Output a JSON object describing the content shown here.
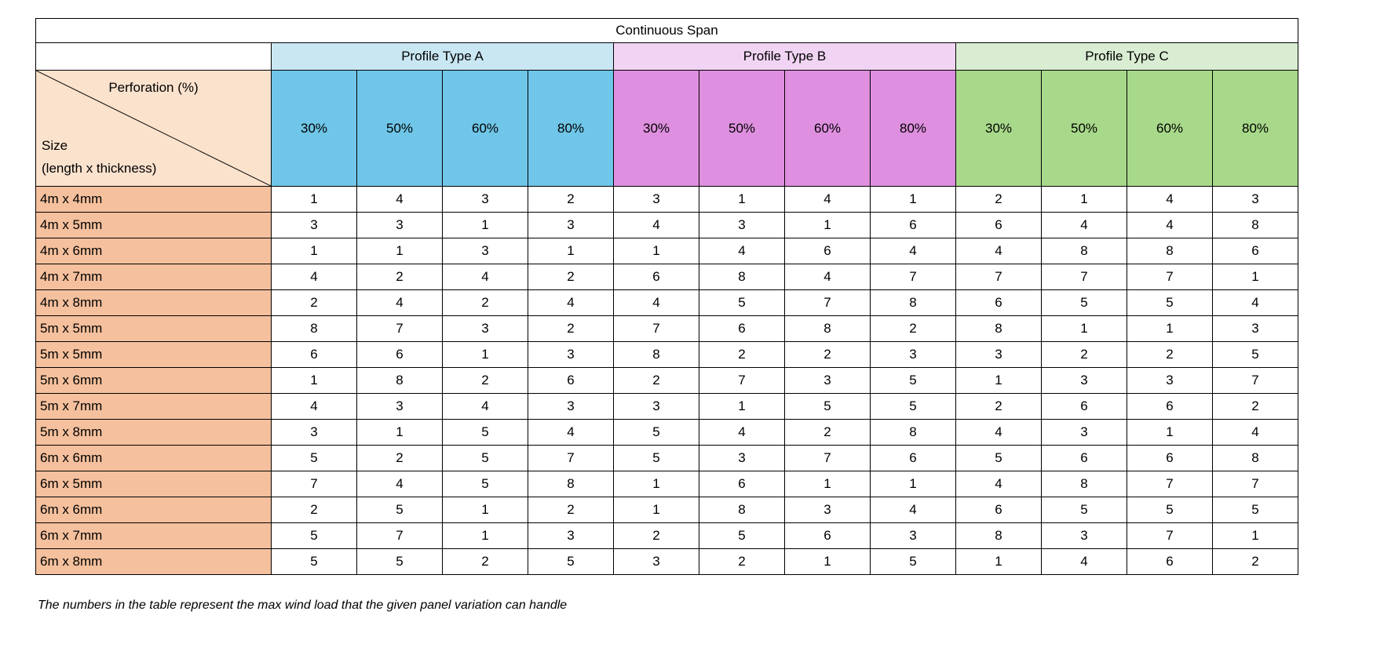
{
  "page": {
    "footnote": "The numbers in the table represent the max wind load that the given panel variation can handle"
  },
  "chart_data": {
    "type": "table",
    "title": "Continuous Span",
    "corner": {
      "top_label": "Perforation (%)",
      "bottom_label_line1": "Size",
      "bottom_label_line2": "(length x thickness)"
    },
    "groups": [
      {
        "key": "profile-a",
        "label": "Profile Type A",
        "header_bg": "#C9E7F3",
        "sub_bg": "#6FC6E8"
      },
      {
        "key": "profile-b",
        "label": "Profile Type B",
        "header_bg": "#F1D4F3",
        "sub_bg": "#DE8FDF"
      },
      {
        "key": "profile-c",
        "label": "Profile Type C",
        "header_bg": "#D9EDD2",
        "sub_bg": "#A8D98A"
      }
    ],
    "perforation_levels": [
      "30%",
      "50%",
      "60%",
      "80%"
    ],
    "colors": {
      "corner_bg": "#FBE2CD",
      "row_header_bg": "#F5C09D",
      "border": "#000000"
    },
    "rows": [
      {
        "size": "4m x 4mm",
        "values": [
          1,
          4,
          3,
          2,
          3,
          1,
          4,
          1,
          2,
          1,
          4,
          3
        ]
      },
      {
        "size": "4m x 5mm",
        "values": [
          3,
          3,
          1,
          3,
          4,
          3,
          1,
          6,
          6,
          4,
          4,
          8
        ]
      },
      {
        "size": "4m x 6mm",
        "values": [
          1,
          1,
          3,
          1,
          1,
          4,
          6,
          4,
          4,
          8,
          8,
          6
        ]
      },
      {
        "size": "4m x 7mm",
        "values": [
          4,
          2,
          4,
          2,
          6,
          8,
          4,
          7,
          7,
          7,
          7,
          1
        ]
      },
      {
        "size": "4m x 8mm",
        "values": [
          2,
          4,
          2,
          4,
          4,
          5,
          7,
          8,
          6,
          5,
          5,
          4
        ]
      },
      {
        "size": "5m x 5mm",
        "values": [
          8,
          7,
          3,
          2,
          7,
          6,
          8,
          2,
          8,
          1,
          1,
          3
        ]
      },
      {
        "size": "5m x 5mm",
        "values": [
          6,
          6,
          1,
          3,
          8,
          2,
          2,
          3,
          3,
          2,
          2,
          5
        ]
      },
      {
        "size": "5m x 6mm",
        "values": [
          1,
          8,
          2,
          6,
          2,
          7,
          3,
          5,
          1,
          3,
          3,
          7
        ]
      },
      {
        "size": "5m x 7mm",
        "values": [
          4,
          3,
          4,
          3,
          3,
          1,
          5,
          5,
          2,
          6,
          6,
          2
        ]
      },
      {
        "size": "5m x 8mm",
        "values": [
          3,
          1,
          5,
          4,
          5,
          4,
          2,
          8,
          4,
          3,
          1,
          4
        ]
      },
      {
        "size": "6m x 6mm",
        "values": [
          5,
          2,
          5,
          7,
          5,
          3,
          7,
          6,
          5,
          6,
          6,
          8
        ]
      },
      {
        "size": "6m x 5mm",
        "values": [
          7,
          4,
          5,
          8,
          1,
          6,
          1,
          1,
          4,
          8,
          7,
          7
        ]
      },
      {
        "size": "6m x 6mm",
        "values": [
          2,
          5,
          1,
          2,
          1,
          8,
          3,
          4,
          6,
          5,
          5,
          5
        ]
      },
      {
        "size": "6m x 7mm",
        "values": [
          5,
          7,
          1,
          3,
          2,
          5,
          6,
          3,
          8,
          3,
          7,
          1
        ]
      },
      {
        "size": "6m x 8mm",
        "values": [
          5,
          5,
          2,
          5,
          3,
          2,
          1,
          5,
          1,
          4,
          6,
          2
        ]
      }
    ]
  }
}
